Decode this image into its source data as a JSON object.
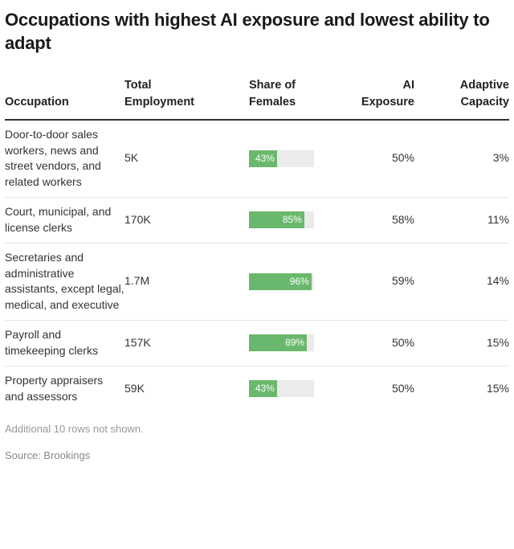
{
  "title": "Occupations with highest AI exposure and lowest ability to adapt",
  "chart_data": {
    "type": "table",
    "columns": [
      "Occupation",
      "Total Employment",
      "Share of Females",
      "AI Exposure",
      "Adaptive Capacity"
    ],
    "header_lines": [
      [
        "Occupation"
      ],
      [
        "Total",
        "Employment"
      ],
      [
        "Share of",
        "Females"
      ],
      [
        "AI",
        "Exposure"
      ],
      [
        "Adaptive",
        "Capacity"
      ]
    ],
    "rows": [
      {
        "occupation": "Door-to-door sales workers, news and street vendors, and related workers",
        "employment": "5K",
        "female_share": 43,
        "female_label": "43%",
        "ai_exposure": "50%",
        "adaptive_capacity": "3%"
      },
      {
        "occupation": "Court, municipal, and license clerks",
        "employment": "170K",
        "female_share": 85,
        "female_label": "85%",
        "ai_exposure": "58%",
        "adaptive_capacity": "11%"
      },
      {
        "occupation": "Secretaries and administrative assistants, except legal, medical, and executive",
        "employment": "1.7M",
        "female_share": 96,
        "female_label": "96%",
        "ai_exposure": "59%",
        "adaptive_capacity": "14%"
      },
      {
        "occupation": "Payroll and timekeeping clerks",
        "employment": "157K",
        "female_share": 89,
        "female_label": "89%",
        "ai_exposure": "50%",
        "adaptive_capacity": "15%"
      },
      {
        "occupation": "Property appraisers and assessors",
        "employment": "59K",
        "female_share": 43,
        "female_label": "43%",
        "ai_exposure": "50%",
        "adaptive_capacity": "15%"
      }
    ],
    "bar_color": "#6ab86d",
    "bar_track_color": "#ebebeb"
  },
  "footnote": "Additional 10 rows not shown.",
  "source": "Source: Brookings"
}
